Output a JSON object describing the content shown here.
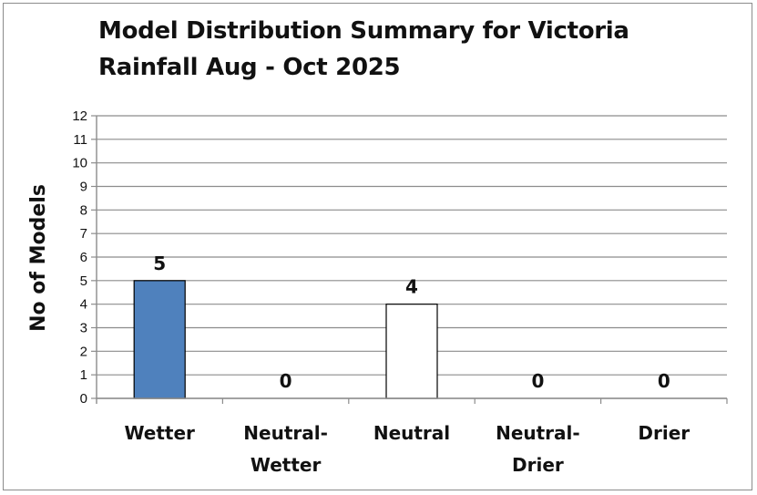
{
  "chart_data": {
    "type": "bar",
    "title_lines": [
      "Model Distribution Summary for Victoria",
      "Rainfall Aug - Oct 2025"
    ],
    "ylabel": "No of Models",
    "xlabel": "",
    "categories": [
      [
        "Wetter"
      ],
      [
        "Neutral-",
        "Wetter"
      ],
      [
        "Neutral"
      ],
      [
        "Neutral-",
        "Drier"
      ],
      [
        "Drier"
      ]
    ],
    "values": [
      5,
      0,
      4,
      0,
      0
    ],
    "data_labels": [
      "5",
      "0",
      "4",
      "0",
      "0"
    ],
    "bar_colors": [
      "#4f81bd",
      "#ffffff",
      "#ffffff",
      "#ffffff",
      "#ffffff"
    ],
    "ylim": [
      0,
      12
    ],
    "yticks": [
      0,
      1,
      2,
      3,
      4,
      5,
      6,
      7,
      8,
      9,
      10,
      11,
      12
    ],
    "grid": true,
    "legend": "none"
  }
}
